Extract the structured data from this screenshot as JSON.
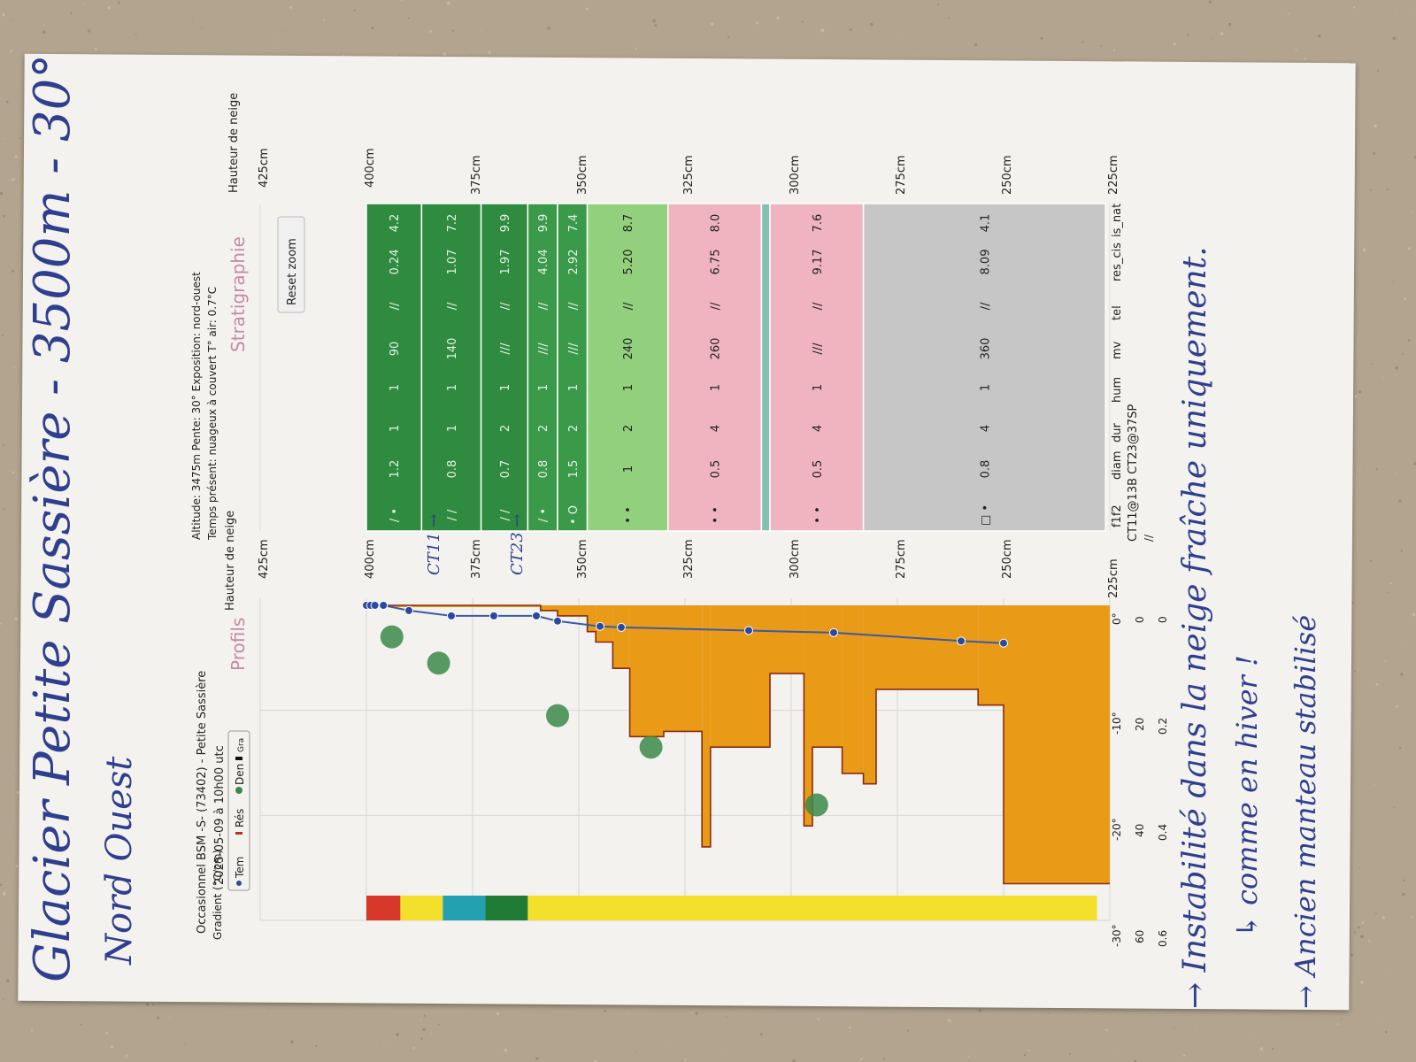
{
  "photo": {
    "background_color": "#b2a48f",
    "paper_color": "#f4f2ee",
    "ink_color": "#2f3f8f"
  },
  "handwriting": {
    "title": "Glacier Petite Sassière - 3500m - 30°",
    "orientation": "Nord Ouest",
    "note1": "→ Instabilité dans la neige fraîche uniquement.",
    "note2": "↳ comme en hiver !",
    "note3": "→ Ancien manteau stabilisé",
    "marker_ct11": "CT11 →",
    "marker_ct23": "CT23 →"
  },
  "report": {
    "observer": "Occasionnel BSM -S- (73402) - Petite Sassière",
    "datetime": "2025-05-09 à 10h00 utc",
    "altitude_line": "Altitude: 3475m Pente: 30° Exposition: nord-ouest",
    "weather_line": "Temps présent: nuageux à couvert T° air: 0.7°C",
    "profils_title": "Profils",
    "strat_title": "Stratigraphie",
    "reset_zoom": "Reset zoom",
    "legend": {
      "temp": "Tem",
      "res": "Rés",
      "den": "Den",
      "gra": "Gra"
    },
    "gradient_label": "Gradient (°C/cm)",
    "axis_title": "Hauteur de neige",
    "height_labels": [
      "425cm",
      "400cm",
      "375cm",
      "350cm",
      "325cm",
      "300cm",
      "275cm",
      "250cm",
      "225cm"
    ],
    "temp_ticks": [
      "0°",
      "-10°",
      "-20°",
      "-30°"
    ],
    "res_ticks": [
      "0",
      "20",
      "40",
      "60"
    ],
    "den_ticks": [
      "0",
      "0.2",
      "0.4",
      "0.6"
    ],
    "columns": [
      "f1f2",
      "diam",
      "dur",
      "hum",
      "mv",
      "tel",
      "res_cis",
      "is_nat"
    ],
    "test_results": "CT11@13B CT23@37SP",
    "test_suffix": "//"
  },
  "chart_data": {
    "type": "snow_profile",
    "y_axis": "Hauteur de neige (cm)",
    "height_range_cm": [
      225,
      425
    ],
    "temperature_range_c": [
      -30,
      0
    ],
    "temperature_profile": [
      {
        "h": 400,
        "t": 0.0
      },
      {
        "h": 399,
        "t": 0.0
      },
      {
        "h": 398,
        "t": 0.0
      },
      {
        "h": 396,
        "t": 0.0
      },
      {
        "h": 390,
        "t": -0.5
      },
      {
        "h": 380,
        "t": -1.0
      },
      {
        "h": 370,
        "t": -1.0
      },
      {
        "h": 360,
        "t": -1.0
      },
      {
        "h": 355,
        "t": -1.5
      },
      {
        "h": 345,
        "t": -2.0
      },
      {
        "h": 340,
        "t": -2.1
      },
      {
        "h": 310,
        "t": -2.4
      },
      {
        "h": 290,
        "t": -2.6
      },
      {
        "h": 260,
        "t": -3.4
      },
      {
        "h": 250,
        "t": -3.6
      }
    ],
    "ram_resistance_steps": [
      {
        "top": 400,
        "bottom": 359,
        "res": 0
      },
      {
        "top": 359,
        "bottom": 355,
        "res": 1
      },
      {
        "top": 355,
        "bottom": 348,
        "res": 2
      },
      {
        "top": 348,
        "bottom": 346,
        "res": 5
      },
      {
        "top": 346,
        "bottom": 342,
        "res": 7
      },
      {
        "top": 342,
        "bottom": 338,
        "res": 12
      },
      {
        "top": 338,
        "bottom": 330,
        "res": 25
      },
      {
        "top": 330,
        "bottom": 321,
        "res": 24
      },
      {
        "top": 321,
        "bottom": 319,
        "res": 46
      },
      {
        "top": 319,
        "bottom": 305,
        "res": 27
      },
      {
        "top": 305,
        "bottom": 297,
        "res": 13
      },
      {
        "top": 297,
        "bottom": 295,
        "res": 42
      },
      {
        "top": 295,
        "bottom": 288,
        "res": 27
      },
      {
        "top": 288,
        "bottom": 283,
        "res": 32
      },
      {
        "top": 283,
        "bottom": 280,
        "res": 34
      },
      {
        "top": 280,
        "bottom": 256,
        "res": 16
      },
      {
        "top": 256,
        "bottom": 250,
        "res": 19
      },
      {
        "top": 250,
        "bottom": 225,
        "res": 53
      }
    ],
    "density_points": [
      {
        "h": 394,
        "d": 0.06
      },
      {
        "h": 383,
        "d": 0.11
      },
      {
        "h": 355,
        "d": 0.21
      },
      {
        "h": 333,
        "d": 0.27
      },
      {
        "h": 294,
        "d": 0.38
      }
    ],
    "grain_color_bands": [
      {
        "top": 400,
        "bottom": 392,
        "color": "#d8382a"
      },
      {
        "top": 392,
        "bottom": 382,
        "color": "#f2e02c"
      },
      {
        "top": 382,
        "bottom": 372,
        "color": "#23a0b2"
      },
      {
        "top": 372,
        "bottom": 362,
        "color": "#1f7a34"
      },
      {
        "top": 362,
        "bottom": 228,
        "color": "#f2e02c"
      }
    ],
    "strat_layers": [
      {
        "top": 400,
        "bottom": 387,
        "color": "#2e8b3f",
        "f": "/ •",
        "diam": "1.2",
        "dur": "1",
        "hum": "1",
        "mv": "90",
        "tel": "//",
        "res_cis": "0.24",
        "is_nat": "4.2"
      },
      {
        "top": 387,
        "bottom": 373,
        "color": "#2e8b3f",
        "f": "/ /",
        "diam": "0.8",
        "dur": "1",
        "hum": "1",
        "mv": "140",
        "tel": "//",
        "res_cis": "1.07",
        "is_nat": "7.2"
      },
      {
        "top": 373,
        "bottom": 362,
        "color": "#2e8b3f",
        "f": "/ /",
        "diam": "0.7",
        "dur": "2",
        "hum": "1",
        "mv": "///",
        "tel": "//",
        "res_cis": "1.97",
        "is_nat": "9.9"
      },
      {
        "top": 362,
        "bottom": 355,
        "color": "#3a9a4a",
        "f": "/ •",
        "diam": "0.8",
        "dur": "2",
        "hum": "1",
        "mv": "///",
        "tel": "//",
        "res_cis": "4.04",
        "is_nat": "9.9"
      },
      {
        "top": 355,
        "bottom": 348,
        "color": "#3a9a4a",
        "f": "• O",
        "diam": "1.5",
        "dur": "2",
        "hum": "1",
        "mv": "///",
        "tel": "//",
        "res_cis": "2.92",
        "is_nat": "7.4"
      },
      {
        "top": 348,
        "bottom": 329,
        "color": "#93d07e",
        "f": "• •",
        "diam": "1",
        "dur": "2",
        "hum": "1",
        "mv": "240",
        "tel": "//",
        "res_cis": "5.20",
        "is_nat": "8.7"
      },
      {
        "top": 329,
        "bottom": 307,
        "color": "#f0b4c0",
        "f": "• •",
        "diam": "0.5",
        "dur": "4",
        "hum": "1",
        "mv": "260",
        "tel": "//",
        "res_cis": "6.75",
        "is_nat": "8.0"
      },
      {
        "top": 307,
        "bottom": 305,
        "color": "#84c0b0",
        "f": "",
        "diam": "",
        "dur": "",
        "hum": "",
        "mv": "",
        "tel": "",
        "res_cis": "",
        "is_nat": ""
      },
      {
        "top": 305,
        "bottom": 283,
        "color": "#f0b4c0",
        "f": "• •",
        "diam": "0.5",
        "dur": "4",
        "hum": "1",
        "mv": "///",
        "tel": "//",
        "res_cis": "9.17",
        "is_nat": "7.6"
      },
      {
        "top": 283,
        "bottom": 226,
        "color": "#c6c6c6",
        "f": "□ •",
        "diam": "0.8",
        "dur": "4",
        "hum": "1",
        "mv": "360",
        "tel": "//",
        "res_cis": "8.09",
        "is_nat": "4.1"
      }
    ]
  }
}
